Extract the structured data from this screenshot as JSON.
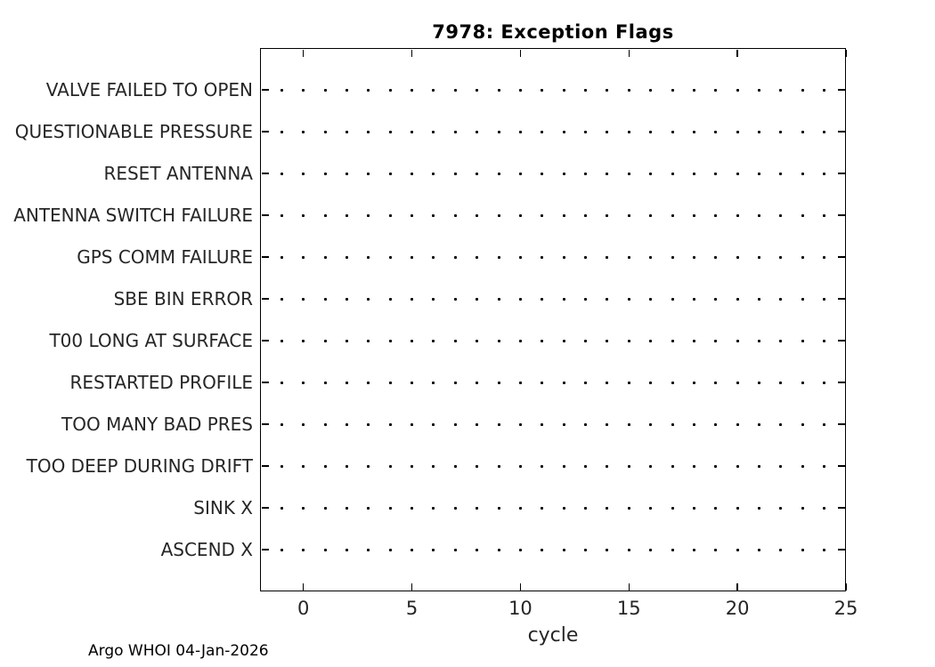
{
  "figure": {
    "background_color": "#ffffff",
    "axes_color": "#000000",
    "tick_label_color": "#262626",
    "marker_color": "#000000"
  },
  "footer": {
    "text": "Argo WHOI 04-Jan-2026"
  },
  "chart_data": {
    "type": "scatter",
    "title": "7978: Exception Flags",
    "xlabel": "cycle",
    "ylabel": "",
    "xlim": [
      -2,
      25
    ],
    "xticks": [
      0,
      5,
      10,
      15,
      20,
      25
    ],
    "grid": false,
    "legend": "none",
    "categories": [
      "VALVE FAILED TO OPEN",
      "QUESTIONABLE PRESSURE",
      "RESET ANTENNA",
      "ANTENNA SWITCH FAILURE",
      "GPS COMM FAILURE",
      "SBE BIN ERROR",
      "T00 LONG AT SURFACE",
      "RESTARTED PROFILE",
      "TOO MANY BAD PRES",
      "TOO DEEP DURING DRIFT",
      "SINK X",
      "ASCEND X"
    ],
    "x": [
      -1,
      0,
      1,
      2,
      3,
      4,
      5,
      6,
      7,
      8,
      9,
      10,
      11,
      12,
      13,
      14,
      15,
      16,
      17,
      18,
      19,
      20,
      21,
      22,
      23,
      24
    ],
    "series_note": "one dot marker per cycle on every category row; no exception flags raised",
    "marker": "point"
  }
}
